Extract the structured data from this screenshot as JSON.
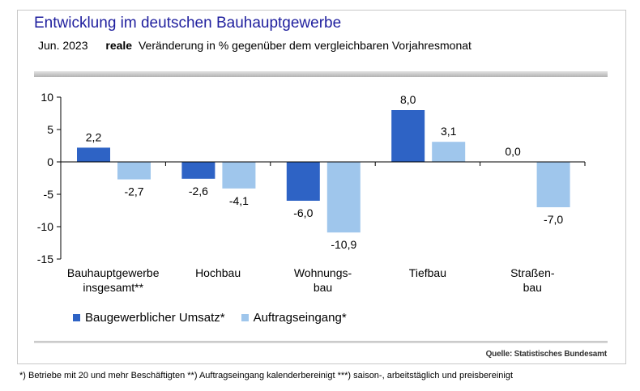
{
  "header": {
    "title": "Entwicklung im deutschen Bauhauptgewerbe",
    "period": "Jun. 2023",
    "subtitle_bold": "reale",
    "subtitle_rest": "Veränderung in % gegenüber dem vergleichbaren Vorjahresmonat"
  },
  "source": "Quelle: Statistisches Bundesamt",
  "footnote": "*) Betriebe mit 20 und mehr Beschäftigten  **) Auftragseingang kalenderbereinigt  ***) saison-, arbeitstäglich und preisbereinigt",
  "colors": {
    "series1": "#2e63c5",
    "series2": "#9fc6ec"
  },
  "chart_data": {
    "type": "bar",
    "title": "Entwicklung im deutschen Bauhauptgewerbe",
    "categories": [
      [
        "Bauhauptgewerbe",
        "insgesamt**"
      ],
      [
        "Hochbau"
      ],
      [
        "Wohnungs-",
        "bau"
      ],
      [
        "Tiefbau"
      ],
      [
        "Straßen-",
        "bau"
      ]
    ],
    "series": [
      {
        "name": "Baugewerblicher Umsatz*",
        "values": [
          2.2,
          -2.6,
          -6.0,
          8.0,
          0.0
        ],
        "labels": [
          "2,2",
          "-2,6",
          "-6,0",
          "8,0",
          "0,0"
        ]
      },
      {
        "name": "Auftragseingang*",
        "values": [
          -2.7,
          -4.1,
          -10.9,
          3.1,
          -7.0
        ],
        "labels": [
          "-2,7",
          "-4,1",
          "-10,9",
          "3,1",
          "-7,0"
        ]
      }
    ],
    "ylim": [
      -15,
      10
    ],
    "yticks": [
      10,
      5,
      0,
      -5,
      -10,
      -15
    ],
    "ytick_labels": [
      "10",
      "5",
      "0",
      "-5",
      "-10",
      "-15"
    ],
    "legend": "bottom-left",
    "grid": false
  }
}
